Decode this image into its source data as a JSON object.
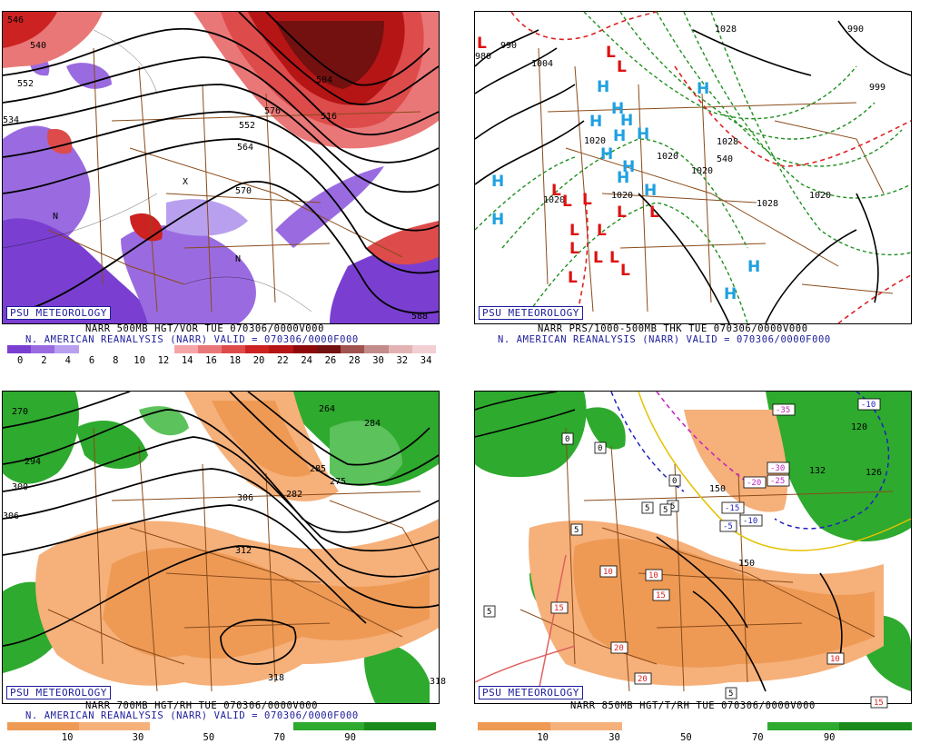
{
  "brand_label": "PSU METEOROLOGY",
  "panels": {
    "p1": {
      "caption1": "NARR 500MB HGT/VOR TUE 070306/0000V000",
      "caption2": "N. AMERICAN REANALYSIS (NARR) VALID = 070306/0000F000",
      "scale_ticks": [
        "0",
        "2",
        "4",
        "6",
        "8",
        "10",
        "12",
        "14",
        "16",
        "18",
        "20",
        "22",
        "24",
        "26",
        "28",
        "30",
        "32",
        "34"
      ],
      "contour_labels": [
        "546",
        "540",
        "552",
        "534",
        "552",
        "564",
        "570",
        "576",
        "516",
        "504",
        "588"
      ],
      "markers": [
        "N",
        "X",
        "N"
      ],
      "scale_colors": [
        "#7a3fd1",
        "#9a6be0",
        "#b9a0ee",
        "#ffffff",
        "#ffffff",
        "#ffffff",
        "#ffffff",
        "#f4a6a6",
        "#ea7777",
        "#dd4b4b",
        "#cc2222",
        "#b51515",
        "#8e0a0a",
        "#731010",
        "#a0524f",
        "#c48b8b",
        "#e3b3b3",
        "#f2cfd3"
      ]
    },
    "p2": {
      "caption1": "NARR PRS/1000-500MB THK TUE 070306/0000V000",
      "caption2": "N. AMERICAN REANALYSIS (NARR) VALID = 070306/0000F000",
      "contour_labels": [
        "980",
        "990",
        "1004",
        "1020",
        "1020",
        "1020",
        "1020",
        "1028",
        "1020",
        "1028",
        "1020",
        "1028",
        "540",
        "999",
        "990"
      ],
      "highs": "H",
      "lows": "L"
    },
    "p3": {
      "caption1": "NARR 700MB HGT/RH TUE 070306/0000V000",
      "caption2": "N. AMERICAN REANALYSIS (NARR) VALID = 070306/0000F000",
      "scale_ticks": [
        "10",
        "30",
        "50",
        "70",
        "90"
      ],
      "contour_labels": [
        "270",
        "264",
        "284",
        "294",
        "300",
        "306",
        "312",
        "318",
        "306",
        "275",
        "285",
        "282",
        "318"
      ]
    },
    "p4": {
      "caption1": "NARR 850MB HGT/T/RH TUE 070306/0000V000",
      "caption2": "",
      "scale_ticks": [
        "10",
        "30",
        "50",
        "70",
        "90"
      ],
      "temp_labels": [
        "-10",
        "-35",
        "-30",
        "-25",
        "-20",
        "-15",
        "-10",
        "-5",
        "0",
        "0",
        "5",
        "5",
        "5",
        "5",
        "10",
        "10",
        "15",
        "15",
        "20",
        "20",
        "10",
        "5",
        "15",
        "5",
        "0"
      ],
      "contour_labels": [
        "150",
        "132",
        "126",
        "120",
        "150"
      ]
    }
  },
  "colors": {
    "hgt_contour": "#000000",
    "vort_purple": "#8a5bd8",
    "vort_red": "#cc2222",
    "thickness_green": "#1f8f1f",
    "thickness_red": "#dd2222",
    "high_blue": "#1ea0e0",
    "low_red": "#dd1111",
    "rh_orange": "#ee9a55",
    "rh_green": "#2eaa2e",
    "border_brown": "#8a4b1a"
  }
}
